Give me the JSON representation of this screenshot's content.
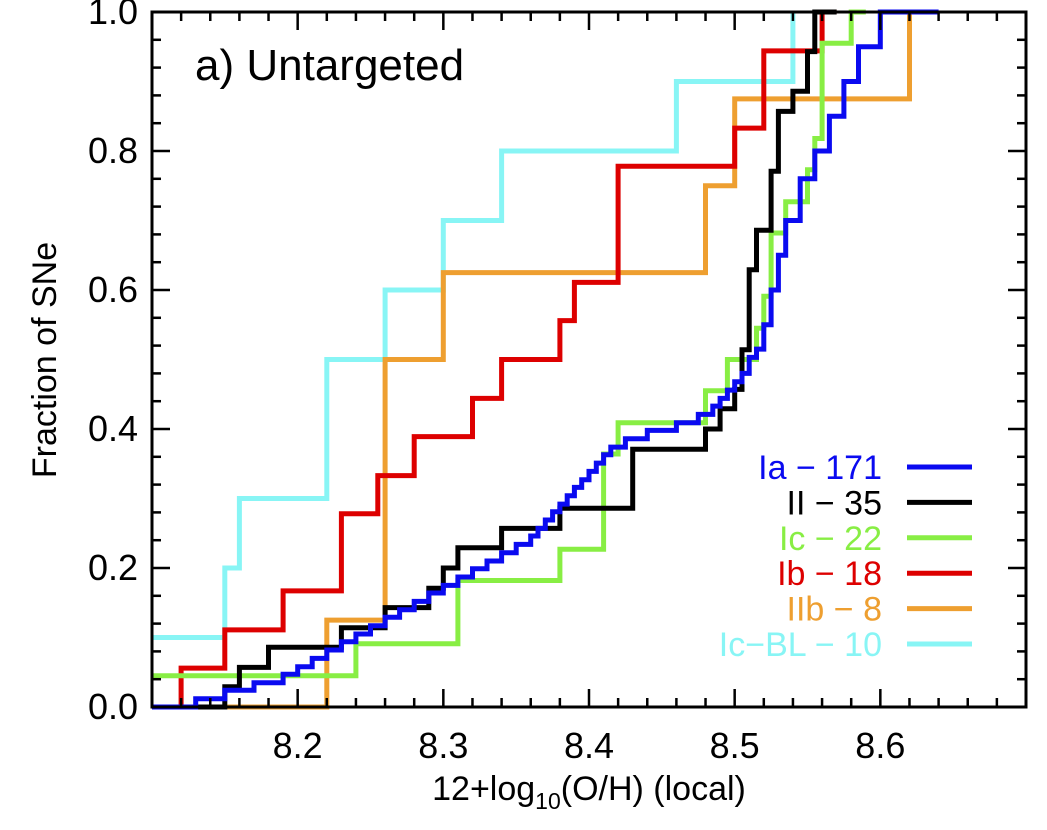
{
  "chart_data": {
    "type": "line",
    "step": true,
    "panel_title": "a) Untargeted",
    "ylabel": "Fraction of SNe",
    "xlabel": {
      "prefix": "12+log",
      "subscript": "10",
      "suffix": "(O/H) (local)"
    },
    "xlim": [
      8.1,
      8.7
    ],
    "ylim": [
      0.0,
      1.0
    ],
    "x_ticks": [
      8.2,
      8.3,
      8.4,
      8.5,
      8.6
    ],
    "x_tick_labels": [
      "8.2",
      "8.3",
      "8.4",
      "8.5",
      "8.6"
    ],
    "y_ticks": [
      0.0,
      0.2,
      0.4,
      0.6,
      0.8,
      1.0
    ],
    "y_tick_labels": [
      "0.0",
      "0.2",
      "0.4",
      "0.6",
      "0.8",
      "1.0"
    ],
    "legend_position": "bottom-right",
    "series": [
      {
        "name": "Ia − 171",
        "color": "#0a0af0",
        "points": [
          [
            8.1,
            0.0
          ],
          [
            8.13,
            0.0
          ],
          [
            8.13,
            0.012
          ],
          [
            8.15,
            0.012
          ],
          [
            8.15,
            0.024
          ],
          [
            8.17,
            0.024
          ],
          [
            8.17,
            0.035
          ],
          [
            8.19,
            0.035
          ],
          [
            8.19,
            0.047
          ],
          [
            8.2,
            0.047
          ],
          [
            8.2,
            0.058
          ],
          [
            8.21,
            0.058
          ],
          [
            8.21,
            0.07
          ],
          [
            8.22,
            0.07
          ],
          [
            8.22,
            0.082
          ],
          [
            8.23,
            0.082
          ],
          [
            8.23,
            0.094
          ],
          [
            8.24,
            0.094
          ],
          [
            8.24,
            0.105
          ],
          [
            8.25,
            0.105
          ],
          [
            8.25,
            0.117
          ],
          [
            8.26,
            0.117
          ],
          [
            8.26,
            0.129
          ],
          [
            8.27,
            0.129
          ],
          [
            8.27,
            0.14
          ],
          [
            8.28,
            0.14
          ],
          [
            8.28,
            0.152
          ],
          [
            8.29,
            0.152
          ],
          [
            8.29,
            0.164
          ],
          [
            8.3,
            0.164
          ],
          [
            8.3,
            0.175
          ],
          [
            8.31,
            0.175
          ],
          [
            8.31,
            0.187
          ],
          [
            8.32,
            0.187
          ],
          [
            8.32,
            0.199
          ],
          [
            8.33,
            0.199
          ],
          [
            8.33,
            0.21
          ],
          [
            8.34,
            0.21
          ],
          [
            8.34,
            0.222
          ],
          [
            8.35,
            0.222
          ],
          [
            8.35,
            0.234
          ],
          [
            8.36,
            0.234
          ],
          [
            8.36,
            0.246
          ],
          [
            8.365,
            0.246
          ],
          [
            8.365,
            0.257
          ],
          [
            8.37,
            0.257
          ],
          [
            8.37,
            0.269
          ],
          [
            8.375,
            0.269
          ],
          [
            8.375,
            0.281
          ],
          [
            8.38,
            0.281
          ],
          [
            8.38,
            0.292
          ],
          [
            8.385,
            0.292
          ],
          [
            8.385,
            0.304
          ],
          [
            8.39,
            0.304
          ],
          [
            8.39,
            0.316
          ],
          [
            8.395,
            0.316
          ],
          [
            8.395,
            0.327
          ],
          [
            8.4,
            0.327
          ],
          [
            8.4,
            0.339
          ],
          [
            8.405,
            0.339
          ],
          [
            8.405,
            0.351
          ],
          [
            8.41,
            0.351
          ],
          [
            8.41,
            0.363
          ],
          [
            8.415,
            0.363
          ],
          [
            8.415,
            0.374
          ],
          [
            8.425,
            0.374
          ],
          [
            8.425,
            0.386
          ],
          [
            8.44,
            0.386
          ],
          [
            8.44,
            0.398
          ],
          [
            8.46,
            0.398
          ],
          [
            8.46,
            0.409
          ],
          [
            8.475,
            0.409
          ],
          [
            8.475,
            0.421
          ],
          [
            8.485,
            0.421
          ],
          [
            8.485,
            0.433
          ],
          [
            8.49,
            0.433
          ],
          [
            8.49,
            0.444
          ],
          [
            8.495,
            0.444
          ],
          [
            8.495,
            0.456
          ],
          [
            8.5,
            0.456
          ],
          [
            8.5,
            0.468
          ],
          [
            8.505,
            0.468
          ],
          [
            8.505,
            0.48
          ],
          [
            8.51,
            0.48
          ],
          [
            8.51,
            0.503
          ],
          [
            8.515,
            0.503
          ],
          [
            8.515,
            0.515
          ],
          [
            8.52,
            0.515
          ],
          [
            8.52,
            0.55
          ],
          [
            8.525,
            0.55
          ],
          [
            8.525,
            0.6
          ],
          [
            8.53,
            0.6
          ],
          [
            8.53,
            0.65
          ],
          [
            8.535,
            0.65
          ],
          [
            8.535,
            0.7
          ],
          [
            8.545,
            0.7
          ],
          [
            8.545,
            0.76
          ],
          [
            8.555,
            0.76
          ],
          [
            8.555,
            0.8
          ],
          [
            8.565,
            0.8
          ],
          [
            8.565,
            0.85
          ],
          [
            8.575,
            0.85
          ],
          [
            8.575,
            0.9
          ],
          [
            8.585,
            0.9
          ],
          [
            8.585,
            0.95
          ],
          [
            8.6,
            0.95
          ],
          [
            8.6,
            1.0
          ],
          [
            8.64,
            1.0
          ]
        ]
      },
      {
        "name": "II − 35",
        "color": "#000000",
        "points": [
          [
            8.1,
            0.0
          ],
          [
            8.15,
            0.0
          ],
          [
            8.15,
            0.029
          ],
          [
            8.16,
            0.029
          ],
          [
            8.16,
            0.057
          ],
          [
            8.18,
            0.057
          ],
          [
            8.18,
            0.086
          ],
          [
            8.23,
            0.086
          ],
          [
            8.23,
            0.114
          ],
          [
            8.26,
            0.114
          ],
          [
            8.26,
            0.143
          ],
          [
            8.29,
            0.143
          ],
          [
            8.29,
            0.171
          ],
          [
            8.3,
            0.171
          ],
          [
            8.3,
            0.2
          ],
          [
            8.31,
            0.2
          ],
          [
            8.31,
            0.229
          ],
          [
            8.34,
            0.229
          ],
          [
            8.34,
            0.257
          ],
          [
            8.38,
            0.257
          ],
          [
            8.38,
            0.286
          ],
          [
            8.43,
            0.286
          ],
          [
            8.43,
            0.371
          ],
          [
            8.48,
            0.371
          ],
          [
            8.48,
            0.4
          ],
          [
            8.49,
            0.4
          ],
          [
            8.49,
            0.429
          ],
          [
            8.5,
            0.429
          ],
          [
            8.5,
            0.457
          ],
          [
            8.505,
            0.457
          ],
          [
            8.505,
            0.514
          ],
          [
            8.51,
            0.514
          ],
          [
            8.51,
            0.629
          ],
          [
            8.515,
            0.629
          ],
          [
            8.515,
            0.686
          ],
          [
            8.525,
            0.686
          ],
          [
            8.525,
            0.771
          ],
          [
            8.53,
            0.771
          ],
          [
            8.53,
            0.857
          ],
          [
            8.54,
            0.857
          ],
          [
            8.54,
            0.886
          ],
          [
            8.55,
            0.886
          ],
          [
            8.55,
            0.943
          ],
          [
            8.555,
            0.943
          ],
          [
            8.555,
            1.0
          ],
          [
            8.57,
            1.0
          ]
        ]
      },
      {
        "name": "Ic − 22",
        "color": "#88ee44",
        "points": [
          [
            8.1,
            0.045
          ],
          [
            8.24,
            0.045
          ],
          [
            8.24,
            0.091
          ],
          [
            8.31,
            0.091
          ],
          [
            8.31,
            0.182
          ],
          [
            8.38,
            0.182
          ],
          [
            8.38,
            0.227
          ],
          [
            8.41,
            0.227
          ],
          [
            8.41,
            0.364
          ],
          [
            8.42,
            0.364
          ],
          [
            8.42,
            0.409
          ],
          [
            8.48,
            0.409
          ],
          [
            8.48,
            0.455
          ],
          [
            8.495,
            0.455
          ],
          [
            8.495,
            0.5
          ],
          [
            8.515,
            0.5
          ],
          [
            8.515,
            0.545
          ],
          [
            8.52,
            0.545
          ],
          [
            8.52,
            0.591
          ],
          [
            8.525,
            0.591
          ],
          [
            8.525,
            0.682
          ],
          [
            8.535,
            0.682
          ],
          [
            8.535,
            0.727
          ],
          [
            8.55,
            0.727
          ],
          [
            8.55,
            0.773
          ],
          [
            8.555,
            0.773
          ],
          [
            8.555,
            0.818
          ],
          [
            8.56,
            0.818
          ],
          [
            8.56,
            0.955
          ],
          [
            8.58,
            0.955
          ],
          [
            8.58,
            1.0
          ],
          [
            8.59,
            1.0
          ]
        ]
      },
      {
        "name": "Ib − 18",
        "color": "#dd0000",
        "points": [
          [
            8.1,
            0.0
          ],
          [
            8.12,
            0.0
          ],
          [
            8.12,
            0.056
          ],
          [
            8.15,
            0.056
          ],
          [
            8.15,
            0.111
          ],
          [
            8.19,
            0.111
          ],
          [
            8.19,
            0.167
          ],
          [
            8.23,
            0.167
          ],
          [
            8.23,
            0.278
          ],
          [
            8.255,
            0.278
          ],
          [
            8.255,
            0.333
          ],
          [
            8.28,
            0.333
          ],
          [
            8.28,
            0.389
          ],
          [
            8.32,
            0.389
          ],
          [
            8.32,
            0.444
          ],
          [
            8.34,
            0.444
          ],
          [
            8.34,
            0.5
          ],
          [
            8.38,
            0.5
          ],
          [
            8.38,
            0.556
          ],
          [
            8.39,
            0.556
          ],
          [
            8.39,
            0.611
          ],
          [
            8.42,
            0.611
          ],
          [
            8.42,
            0.778
          ],
          [
            8.5,
            0.778
          ],
          [
            8.5,
            0.833
          ],
          [
            8.52,
            0.833
          ],
          [
            8.52,
            0.944
          ],
          [
            8.56,
            0.944
          ],
          [
            8.56,
            1.0
          ],
          [
            8.57,
            1.0
          ]
        ]
      },
      {
        "name": "IIb − 8",
        "color": "#ee9f30",
        "points": [
          [
            8.1,
            0.0
          ],
          [
            8.22,
            0.0
          ],
          [
            8.22,
            0.125
          ],
          [
            8.26,
            0.125
          ],
          [
            8.26,
            0.5
          ],
          [
            8.3,
            0.5
          ],
          [
            8.3,
            0.625
          ],
          [
            8.48,
            0.625
          ],
          [
            8.48,
            0.75
          ],
          [
            8.5,
            0.75
          ],
          [
            8.5,
            0.875
          ],
          [
            8.62,
            0.875
          ],
          [
            8.62,
            1.0
          ]
        ]
      },
      {
        "name": "Ic−BL − 10",
        "color": "#88f5f5",
        "points": [
          [
            8.1,
            0.1
          ],
          [
            8.15,
            0.1
          ],
          [
            8.15,
            0.2
          ],
          [
            8.16,
            0.2
          ],
          [
            8.16,
            0.3
          ],
          [
            8.22,
            0.3
          ],
          [
            8.22,
            0.5
          ],
          [
            8.26,
            0.5
          ],
          [
            8.26,
            0.6
          ],
          [
            8.3,
            0.6
          ],
          [
            8.3,
            0.7
          ],
          [
            8.34,
            0.7
          ],
          [
            8.34,
            0.8
          ],
          [
            8.46,
            0.8
          ],
          [
            8.46,
            0.9
          ],
          [
            8.54,
            0.9
          ],
          [
            8.54,
            1.0
          ]
        ]
      }
    ]
  }
}
